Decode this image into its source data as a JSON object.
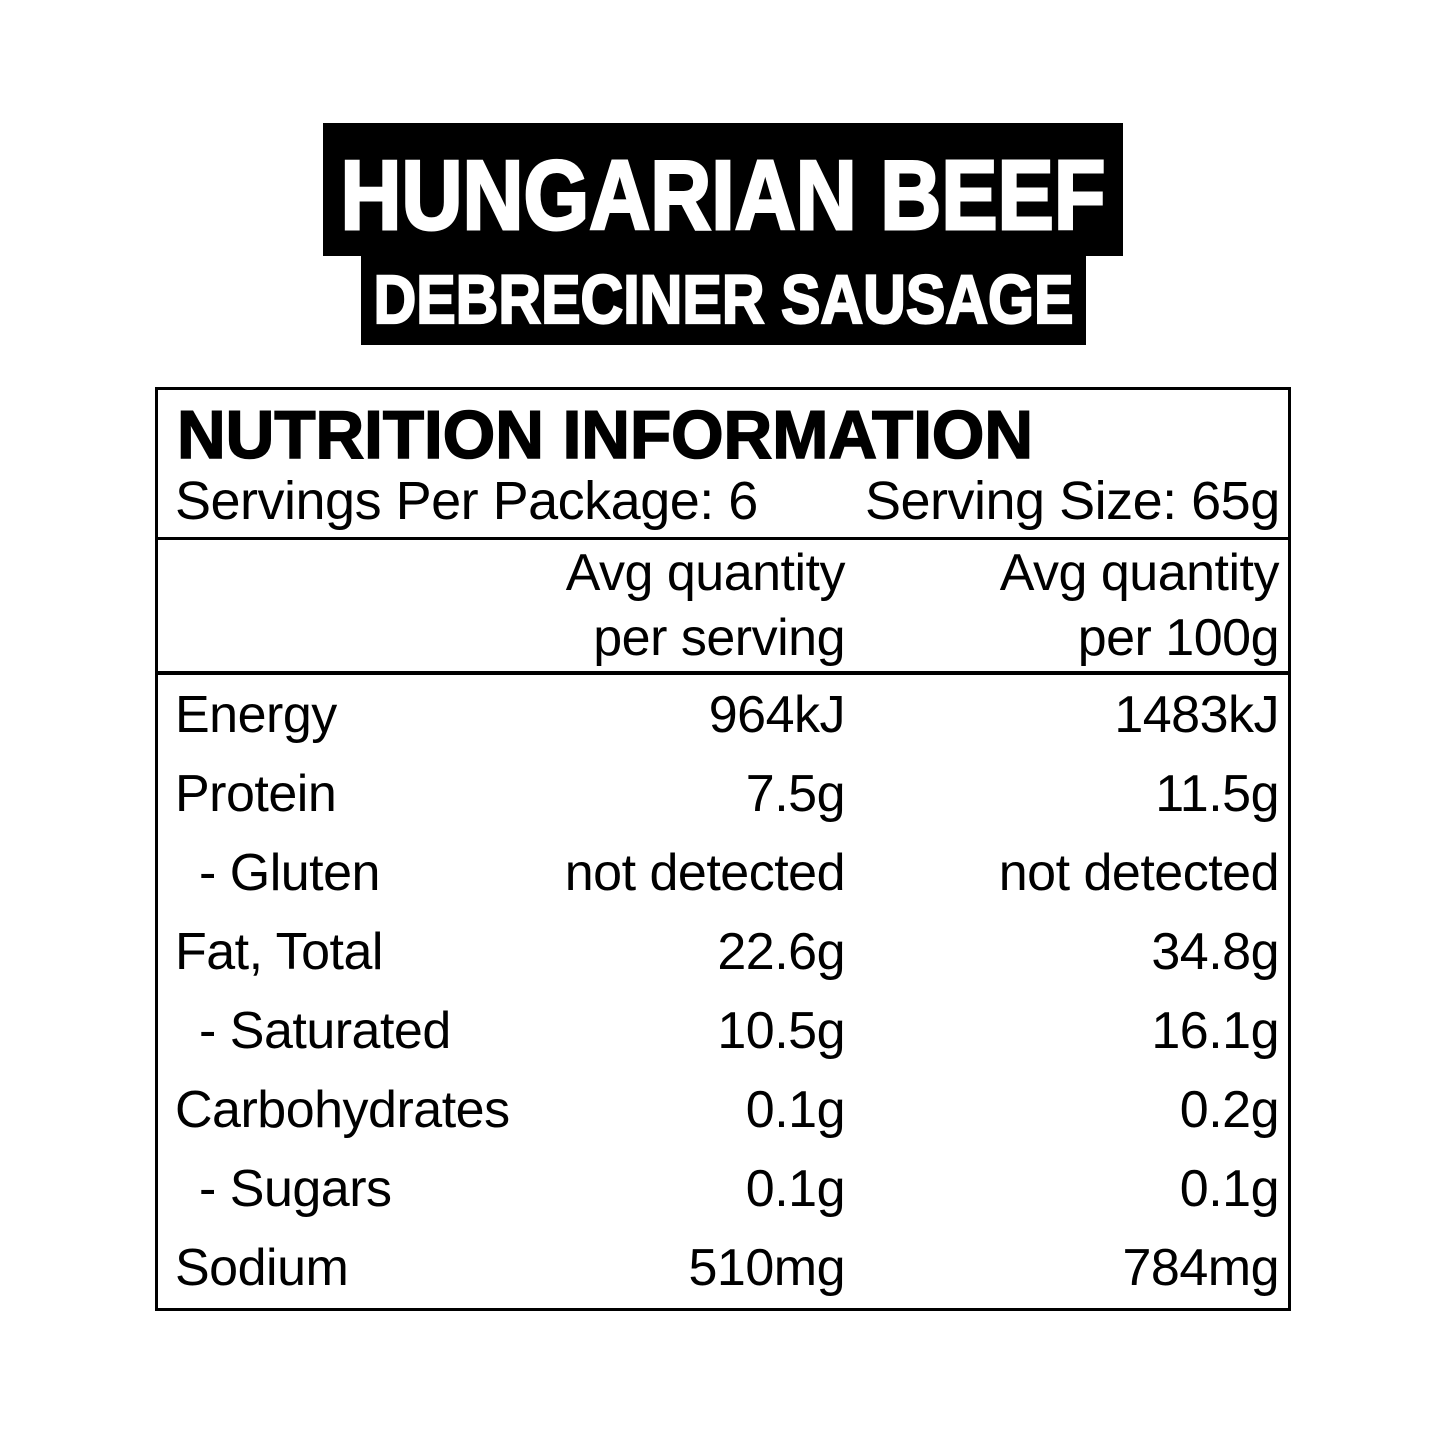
{
  "colors": {
    "background": "#ffffff",
    "text": "#000000",
    "banner_bg": "#000000",
    "banner_fg": "#ffffff",
    "table_border": "#000000"
  },
  "title": {
    "line1": "HUNGARIAN BEEF",
    "line2": "DEBRECINER SAUSAGE"
  },
  "nutrition": {
    "heading": "NUTRITION INFORMATION",
    "servings_per_package": "Servings Per Package: 6",
    "serving_size": "Serving Size: 65g",
    "columns": {
      "per_serving": {
        "line1": "Avg quantity",
        "line2": "per serving"
      },
      "per_100g": {
        "line1": "Avg quantity",
        "line2": "per 100g"
      }
    },
    "rows": [
      {
        "label": "Energy",
        "indent": false,
        "per_serving": "964kJ",
        "per_100g": "1483kJ"
      },
      {
        "label": "Protein",
        "indent": false,
        "per_serving": "7.5g",
        "per_100g": "11.5g"
      },
      {
        "label": "- Gluten",
        "indent": true,
        "per_serving": "not detected",
        "per_100g": "not detected"
      },
      {
        "label": "Fat, Total",
        "indent": false,
        "per_serving": "22.6g",
        "per_100g": "34.8g"
      },
      {
        "label": "- Saturated",
        "indent": true,
        "per_serving": "10.5g",
        "per_100g": "16.1g"
      },
      {
        "label": "Carbohydrates",
        "indent": false,
        "per_serving": "0.1g",
        "per_100g": "0.2g"
      },
      {
        "label": "- Sugars",
        "indent": true,
        "per_serving": "0.1g",
        "per_100g": "0.1g"
      },
      {
        "label": "Sodium",
        "indent": false,
        "per_serving": "510mg",
        "per_100g": "784mg"
      }
    ]
  }
}
